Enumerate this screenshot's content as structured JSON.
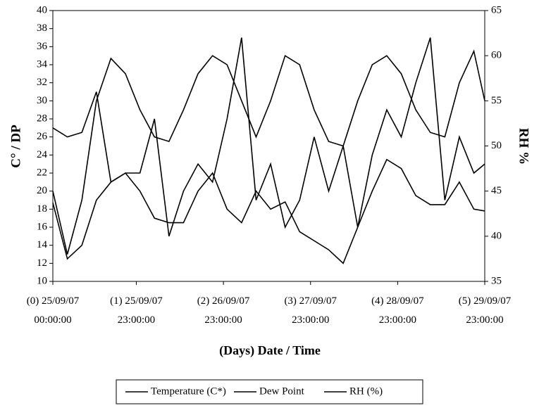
{
  "chart_data": {
    "type": "line",
    "y_label": "C° / DP",
    "y2_label": "RH %",
    "x_label": "(Days) Date / Time",
    "x": [
      0,
      4,
      8,
      12,
      16,
      20,
      24,
      28,
      32,
      36,
      40,
      44,
      48,
      52,
      56,
      60,
      64,
      68,
      72,
      76,
      80,
      84,
      88,
      92,
      96,
      100,
      104,
      108,
      112,
      116,
      119
    ],
    "xlim": [
      0,
      119
    ],
    "xticks": [
      {
        "value": 0,
        "label": "(0) 25/09/07 00:00:00"
      },
      {
        "value": 23,
        "label": "(1) 25/09/07 23:00:00"
      },
      {
        "value": 47,
        "label": "(2) 26/09/07 23:00:00"
      },
      {
        "value": 71,
        "label": "(3) 27/09/07 23:00:00"
      },
      {
        "value": 95,
        "label": "(4) 28/09/07 23:00:00"
      },
      {
        "value": 119,
        "label": "(5) 29/09/07 23:00:00"
      }
    ],
    "ylim": [
      10,
      40
    ],
    "yticks": [
      10,
      12,
      14,
      16,
      18,
      20,
      22,
      24,
      26,
      28,
      30,
      32,
      34,
      36,
      38,
      40
    ],
    "y2lim": [
      35,
      65
    ],
    "y2ticks": [
      35,
      40,
      45,
      50,
      55,
      60,
      65
    ],
    "series": [
      {
        "name": "Temperature (C*)",
        "color": "#000000",
        "values": [
          20,
          13,
          19,
          30,
          34.7,
          33,
          29,
          26,
          25.5,
          29,
          33,
          35,
          34,
          30,
          26,
          30,
          35,
          34,
          29,
          25.5,
          25,
          30,
          34,
          35,
          33,
          29,
          26.5,
          26,
          32,
          35.5,
          30
        ]
      },
      {
        "name": "Dew Point",
        "color": "#000000",
        "values": [
          18.7,
          12.5,
          14,
          19,
          21,
          22,
          20,
          17,
          16.5,
          16.5,
          20,
          22,
          18,
          16.5,
          20,
          18,
          18.8,
          15.5,
          14.5,
          13.5,
          12,
          16,
          20,
          23.5,
          22.5,
          19.5,
          18.5,
          18.5,
          21,
          18,
          17.8
        ]
      },
      {
        "name": "RH (%)",
        "color": "#000000",
        "axis": "y2",
        "values": [
          52,
          51,
          51.5,
          56,
          46,
          47,
          47,
          53,
          40,
          45,
          48,
          46,
          53,
          62,
          44,
          48,
          41,
          44,
          51,
          45,
          50,
          41,
          49,
          54,
          51,
          57,
          62,
          44,
          51,
          47,
          48
        ]
      }
    ]
  }
}
